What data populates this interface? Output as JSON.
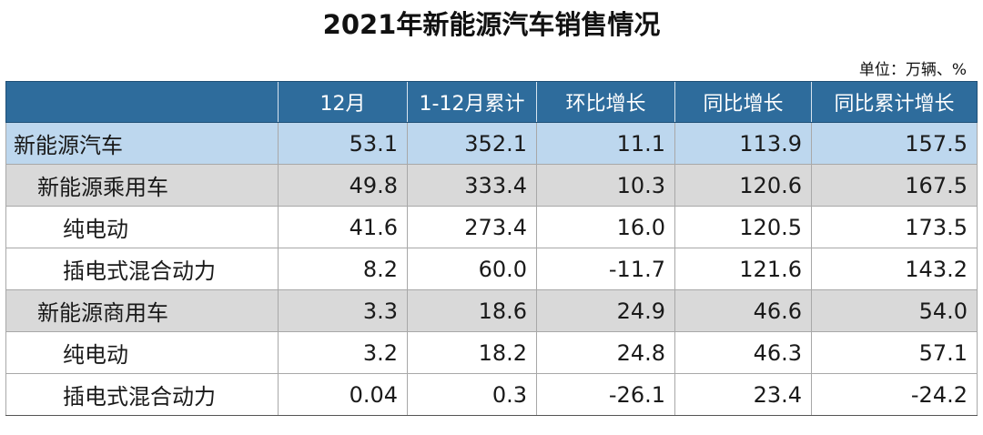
{
  "title": "2021年新能源汽车销售情况",
  "unit": "单位：万辆、%",
  "table": {
    "headers": [
      "",
      "12月",
      "1-12月累计",
      "环比增长",
      "同比增长",
      "同比累计增长"
    ],
    "rows": [
      {
        "level": 0,
        "cells": [
          "新能源汽车",
          "53.1",
          "352.1",
          "11.1",
          "113.9",
          "157.5"
        ]
      },
      {
        "level": 1,
        "cells": [
          "新能源乘用车",
          "49.8",
          "333.4",
          "10.3",
          "120.6",
          "167.5"
        ]
      },
      {
        "level": 2,
        "cells": [
          "纯电动",
          "41.6",
          "273.4",
          "16.0",
          "120.5",
          "173.5"
        ]
      },
      {
        "level": 2,
        "cells": [
          "插电式混合动力",
          "8.2",
          "60.0",
          "-11.7",
          "121.6",
          "143.2"
        ]
      },
      {
        "level": 1,
        "cells": [
          "新能源商用车",
          "3.3",
          "18.6",
          "24.9",
          "46.6",
          "54.0"
        ]
      },
      {
        "level": 2,
        "cells": [
          "纯电动",
          "3.2",
          "18.2",
          "24.8",
          "46.3",
          "57.1"
        ]
      },
      {
        "level": 2,
        "cells": [
          "插电式混合动力",
          "0.04",
          "0.3",
          "-26.1",
          "23.4",
          "-24.2"
        ]
      }
    ]
  },
  "colors": {
    "header_bg": "#2e6c9c",
    "total_row_bg": "#bdd7ee",
    "subtotal_row_bg": "#d9d9d9"
  }
}
